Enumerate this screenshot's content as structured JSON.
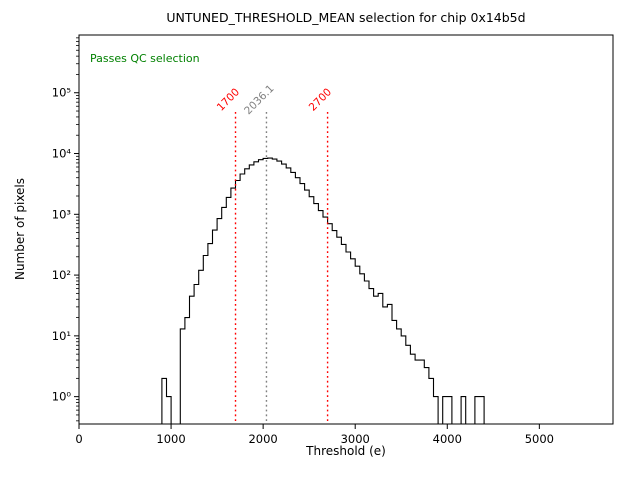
{
  "figure": {
    "title": "UNTUNED_THRESHOLD_MEAN selection for chip 0x14b5d",
    "xlabel": "Threshold (e)",
    "ylabel": "Number of pixels",
    "annotation": "Passes QC selection"
  },
  "colors": {
    "annotation_green": "#008000",
    "cut_line_red": "#ff0000",
    "mean_line_grey": "#808080",
    "histogram_line": "#000000",
    "axis": "#000000"
  },
  "chart_data": {
    "type": "bar",
    "subtype": "step-histogram",
    "title": "UNTUNED_THRESHOLD_MEAN selection for chip 0x14b5d",
    "xlabel": "Threshold (e)",
    "ylabel": "Number of pixels",
    "yscale": "log",
    "grid": "off",
    "xlim": [
      0,
      5800
    ],
    "ylog_exp_range": [
      -0.45,
      5.95
    ],
    "x_ticks": [
      0,
      1000,
      2000,
      3000,
      4000,
      5000
    ],
    "y_tick_exponents": [
      0,
      1,
      2,
      3,
      4,
      5
    ],
    "annotation": {
      "text": "Passes QC selection",
      "color": "#008000"
    },
    "vlines": [
      {
        "x": 1700,
        "label": "1700",
        "color": "#ff0000",
        "style": "dotted"
      },
      {
        "x": 2036.1,
        "label": "2036.1",
        "color": "#808080",
        "style": "dotted"
      },
      {
        "x": 2700,
        "label": "2700",
        "color": "#ff0000",
        "style": "dotted"
      }
    ],
    "bins": {
      "start": 900,
      "width": 50
    },
    "counts": [
      2,
      1,
      0,
      0,
      13,
      20,
      45,
      70,
      120,
      210,
      330,
      550,
      850,
      1300,
      1900,
      2700,
      3600,
      4600,
      5600,
      6500,
      7300,
      7900,
      8300,
      8400,
      8100,
      7500,
      6700,
      5800,
      4900,
      4000,
      3200,
      2500,
      1950,
      1500,
      1150,
      900,
      700,
      540,
      420,
      320,
      240,
      185,
      140,
      105,
      80,
      60,
      45,
      50,
      30,
      33,
      18,
      13,
      10,
      7,
      5,
      4,
      4,
      3,
      2,
      1,
      0,
      1,
      1,
      0,
      0,
      1,
      0,
      0,
      1,
      1
    ]
  }
}
